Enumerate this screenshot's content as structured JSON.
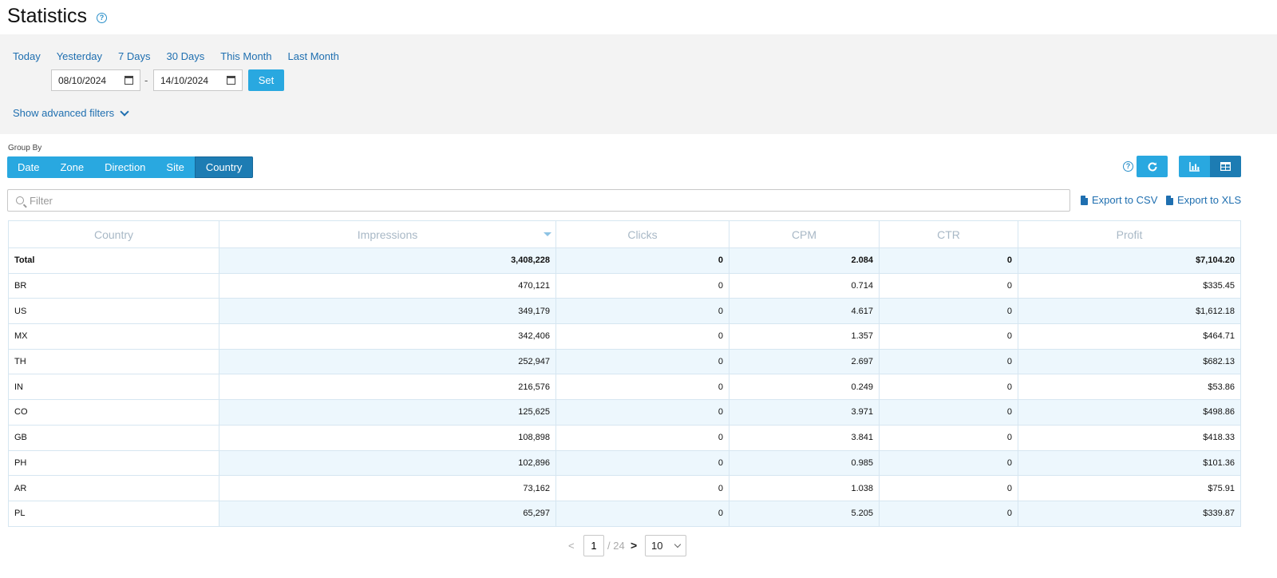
{
  "page": {
    "title": "Statistics",
    "help_glyph": "?"
  },
  "date_filter": {
    "quick_ranges": [
      "Today",
      "Yesterday",
      "7 Days",
      "30 Days",
      "This Month",
      "Last Month"
    ],
    "from": "08/10/2024",
    "separator": "-",
    "to": "14/10/2024",
    "set_label": "Set",
    "advanced_label": "Show advanced filters"
  },
  "group_by": {
    "label": "Group By",
    "options": [
      "Date",
      "Zone",
      "Direction",
      "Site",
      "Country"
    ],
    "active": "Country"
  },
  "toolbar": {
    "refresh_icon": "refresh-icon",
    "view_modes": [
      "chart-icon",
      "table-icon"
    ],
    "active_view": "table"
  },
  "filter": {
    "placeholder": "Filter",
    "value": ""
  },
  "exports": {
    "csv_label": "Export to CSV",
    "xls_label": "Export to XLS"
  },
  "table": {
    "columns": [
      "Country",
      "Impressions",
      "Clicks",
      "CPM",
      "CTR",
      "Profit"
    ],
    "sorted_column": "Impressions",
    "sort_direction": "desc",
    "total": [
      "Total",
      "3,408,228",
      "0",
      "2.084",
      "0",
      "$7,104.20"
    ],
    "rows": [
      [
        "BR",
        "470,121",
        "0",
        "0.714",
        "0",
        "$335.45"
      ],
      [
        "US",
        "349,179",
        "0",
        "4.617",
        "0",
        "$1,612.18"
      ],
      [
        "MX",
        "342,406",
        "0",
        "1.357",
        "0",
        "$464.71"
      ],
      [
        "TH",
        "252,947",
        "0",
        "2.697",
        "0",
        "$682.13"
      ],
      [
        "IN",
        "216,576",
        "0",
        "0.249",
        "0",
        "$53.86"
      ],
      [
        "CO",
        "125,625",
        "0",
        "3.971",
        "0",
        "$498.86"
      ],
      [
        "GB",
        "108,898",
        "0",
        "3.841",
        "0",
        "$418.33"
      ],
      [
        "PH",
        "102,896",
        "0",
        "0.985",
        "0",
        "$101.36"
      ],
      [
        "AR",
        "73,162",
        "0",
        "1.038",
        "0",
        "$75.91"
      ],
      [
        "PL",
        "65,297",
        "0",
        "5.205",
        "0",
        "$339.87"
      ]
    ]
  },
  "pagination": {
    "prev_glyph": "<",
    "page": "1",
    "total": "/ 24",
    "next_glyph": ">",
    "page_size": "10"
  },
  "colors": {
    "accent": "#29a8e0",
    "accent_active": "#1d7cb3",
    "link": "#1f6fb0",
    "panel_bg": "#f3f3f3",
    "row_highlight": "#edf7fd"
  }
}
